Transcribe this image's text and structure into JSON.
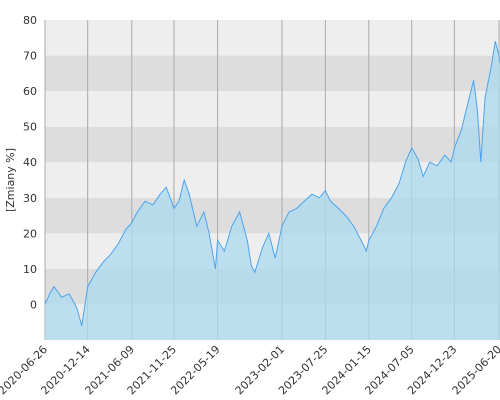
{
  "chart_data": {
    "type": "area",
    "y_label": "[Zmiany %]",
    "x": [
      "2020-06-26",
      "2020-07-15",
      "2020-08-01",
      "2020-09-01",
      "2020-10-01",
      "2020-11-01",
      "2020-11-20",
      "2020-12-14",
      "2021-01-15",
      "2021-02-15",
      "2021-03-15",
      "2021-04-15",
      "2021-05-15",
      "2021-06-09",
      "2021-07-01",
      "2021-08-01",
      "2021-09-01",
      "2021-10-01",
      "2021-10-25",
      "2021-11-25",
      "2021-12-15",
      "2022-01-05",
      "2022-01-25",
      "2022-02-24",
      "2022-03-25",
      "2022-04-15",
      "2022-05-10",
      "2022-05-19",
      "2022-06-15",
      "2022-07-15",
      "2022-08-15",
      "2022-09-15",
      "2022-10-01",
      "2022-10-15",
      "2022-11-15",
      "2022-12-10",
      "2023-01-05",
      "2023-02-01",
      "2023-03-01",
      "2023-04-01",
      "2023-05-01",
      "2023-06-01",
      "2023-07-01",
      "2023-07-25",
      "2023-08-15",
      "2023-09-15",
      "2023-10-15",
      "2023-11-15",
      "2023-12-15",
      "2024-01-05",
      "2024-01-15",
      "2024-02-15",
      "2024-03-15",
      "2024-04-15",
      "2024-05-15",
      "2024-06-10",
      "2024-07-05",
      "2024-07-30",
      "2024-08-20",
      "2024-09-15",
      "2024-10-15",
      "2024-11-15",
      "2024-12-10",
      "2024-12-23",
      "2025-01-20",
      "2025-02-20",
      "2025-03-10",
      "2025-03-25",
      "2025-04-08",
      "2025-04-25",
      "2025-05-20",
      "2025-06-05",
      "2025-06-20",
      "2025-06-24"
    ],
    "values": [
      0,
      3,
      5,
      2,
      3,
      -1,
      -6,
      5,
      9,
      12,
      14,
      17,
      21,
      23,
      26,
      29,
      28,
      31,
      33,
      27,
      29,
      35,
      31,
      22,
      26,
      20,
      10,
      18,
      15,
      22,
      26,
      18,
      11,
      9,
      16,
      20,
      13,
      22,
      26,
      27,
      29,
      31,
      30,
      32,
      29,
      27,
      25,
      22,
      18,
      15,
      18,
      22,
      27,
      30,
      34,
      40,
      44,
      41,
      36,
      40,
      39,
      42,
      40,
      44,
      49,
      58,
      63,
      55,
      40,
      58,
      67,
      74,
      70,
      68
    ],
    "color": "#4da3ee",
    "fill_color": "#a9d9ee",
    "xlim": [
      "2020-06-26",
      "2025-06-24"
    ],
    "xticks": [
      "2020-06-26",
      "2020-12-14",
      "2021-06-09",
      "2021-11-25",
      "2022-05-19",
      "2023-02-01",
      "2023-07-25",
      "2024-01-15",
      "2024-07-05",
      "2024-12-23",
      "2025-06-20"
    ],
    "ylim": [
      -10,
      80
    ],
    "yticks": [
      0,
      10,
      20,
      30,
      40,
      50,
      60,
      70,
      80
    ],
    "band_colors": [
      "#eeeeee",
      "#dddddd"
    ],
    "grid": true
  }
}
